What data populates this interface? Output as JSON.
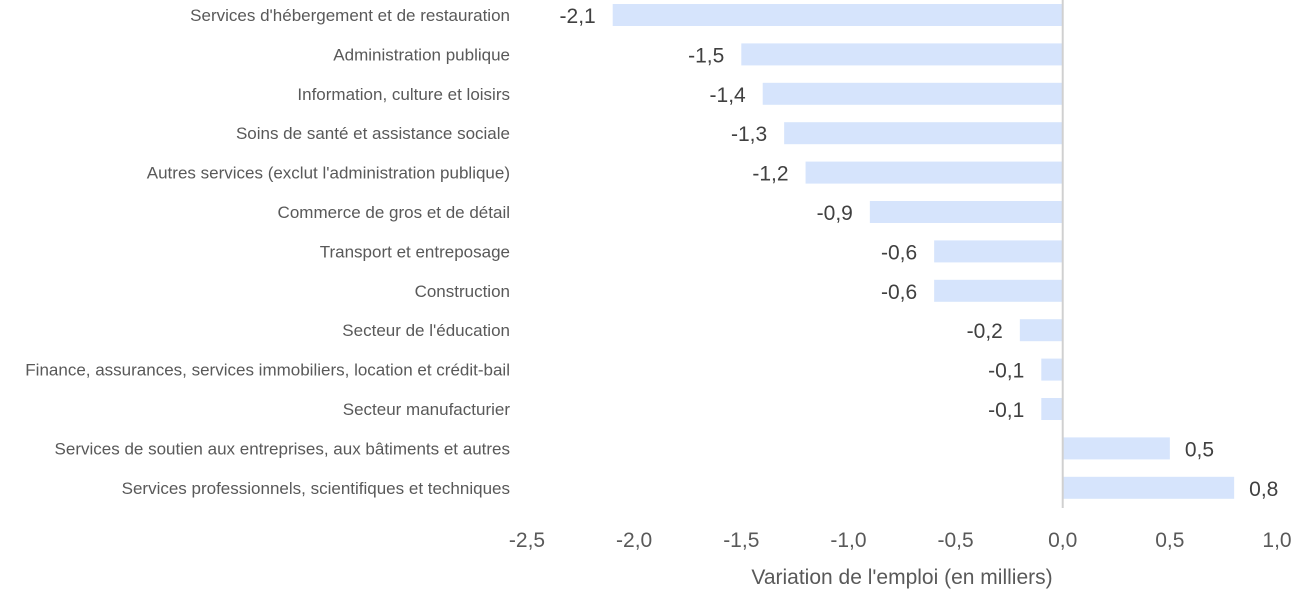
{
  "chart_data": {
    "type": "bar",
    "orientation": "horizontal",
    "categories": [
      "Services d'hébergement et de restauration",
      "Administration publique",
      "Information, culture et loisirs",
      "Soins de santé et assistance sociale",
      "Autres services (exclut l'administration publique)",
      "Commerce de gros et de détail",
      "Transport et entreposage",
      "Construction",
      "Secteur de l'éducation",
      "Finance, assurances, services immobiliers, location et crédit-bail",
      "Secteur manufacturier",
      "Services de soutien aux entreprises, aux bâtiments et autres",
      "Services professionnels, scientifiques et techniques"
    ],
    "values": [
      -2.1,
      -1.5,
      -1.4,
      -1.3,
      -1.2,
      -0.9,
      -0.6,
      -0.6,
      -0.2,
      -0.1,
      -0.1,
      0.5,
      0.8
    ],
    "value_labels": [
      "-2,1",
      "-1,5",
      "-1,4",
      "-1,3",
      "-1,2",
      "-0,9",
      "-0,6",
      "-0,6",
      "-0,2",
      "-0,1",
      "-0,1",
      "0,5",
      "0,8"
    ],
    "xlabel": "Variation de l'emploi (en milliers)",
    "ylabel": "",
    "xlim": [
      -2.5,
      1.0
    ],
    "xticks": [
      -2.5,
      -2.0,
      -1.5,
      -1.0,
      -0.5,
      0.0,
      0.5,
      1.0
    ],
    "xtick_labels": [
      "-2,5",
      "-2,0",
      "-1,5",
      "-1,0",
      "-0,5",
      "0,0",
      "0,5",
      "1,0"
    ],
    "grid": false,
    "legend": "none",
    "bar_color": "#d6e4fc",
    "zero_line_color": "#d0d0d0",
    "text_color": "#595959"
  }
}
